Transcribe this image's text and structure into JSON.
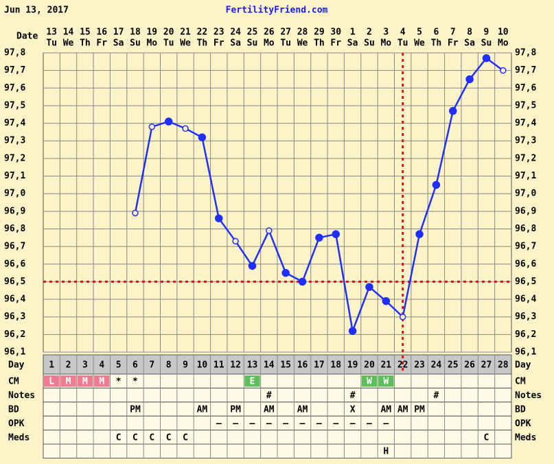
{
  "header": {
    "date": "Jun 13, 2017",
    "site": "FertilityFriend.com"
  },
  "chart_data": {
    "type": "line",
    "x_label": "Date",
    "categories": [
      "13",
      "14",
      "15",
      "16",
      "17",
      "18",
      "19",
      "20",
      "21",
      "22",
      "23",
      "24",
      "25",
      "26",
      "27",
      "28",
      "29",
      "30",
      "1",
      "2",
      "3",
      "4",
      "5",
      "6",
      "7",
      "8",
      "9",
      "10"
    ],
    "weekdays": [
      "Tu",
      "We",
      "Th",
      "Fr",
      "Sa",
      "Su",
      "Mo",
      "Tu",
      "We",
      "Th",
      "Fr",
      "Sa",
      "Su",
      "Mo",
      "Tu",
      "We",
      "Th",
      "Fr",
      "Sa",
      "Su",
      "Mo",
      "Tu",
      "We",
      "Th",
      "Fr",
      "Sa",
      "Su",
      "Mo"
    ],
    "values": [
      null,
      null,
      null,
      null,
      null,
      96.89,
      97.38,
      97.41,
      97.37,
      97.32,
      96.86,
      96.73,
      96.59,
      96.79,
      96.55,
      96.5,
      96.75,
      96.77,
      96.22,
      96.47,
      96.39,
      96.3,
      96.77,
      97.05,
      97.47,
      97.65,
      97.77,
      97.7
    ],
    "markers": [
      null,
      null,
      null,
      null,
      null,
      "open",
      "open",
      "filled",
      "open",
      "filled",
      "filled",
      "open",
      "filled",
      "open",
      "filled",
      "filled",
      "filled",
      "filled",
      "filled",
      "filled",
      "filled",
      "open",
      "filled",
      "filled",
      "filled",
      "filled",
      "filled",
      "open"
    ],
    "color": "#1f2fff",
    "ylim": [
      96.1,
      97.8
    ],
    "yticks": [
      {
        "value": 96.1,
        "label": "96,1"
      },
      {
        "value": 96.2,
        "label": "96,2"
      },
      {
        "value": 96.3,
        "label": "96,3"
      },
      {
        "value": 96.4,
        "label": "96,4"
      },
      {
        "value": 96.5,
        "label": "96,5"
      },
      {
        "value": 96.6,
        "label": "96,6"
      },
      {
        "value": 96.7,
        "label": "96,7"
      },
      {
        "value": 96.8,
        "label": "96,8"
      },
      {
        "value": 96.9,
        "label": "96,9"
      },
      {
        "value": 97.0,
        "label": "97,0"
      },
      {
        "value": 97.1,
        "label": "97,1"
      },
      {
        "value": 97.2,
        "label": "97,2"
      },
      {
        "value": 97.3,
        "label": "97,3"
      },
      {
        "value": 97.4,
        "label": "97,4"
      },
      {
        "value": 97.5,
        "label": "97,5"
      },
      {
        "value": 97.6,
        "label": "97,6"
      },
      {
        "value": 97.7,
        "label": "97,7"
      },
      {
        "value": 97.8,
        "label": "97,8"
      }
    ],
    "grid": true,
    "coverline": 96.5,
    "ovulation_day": 22
  },
  "table": {
    "rows": [
      {
        "label": "Day",
        "cells": [
          1,
          2,
          3,
          4,
          5,
          6,
          7,
          8,
          9,
          10,
          11,
          12,
          13,
          14,
          15,
          16,
          17,
          18,
          19,
          20,
          21,
          22,
          23,
          24,
          25,
          26,
          27,
          28
        ]
      },
      {
        "label": "CM",
        "cells": [
          "L",
          "M",
          "M",
          "M",
          "*",
          "*",
          null,
          null,
          null,
          null,
          null,
          null,
          "E",
          null,
          null,
          null,
          null,
          null,
          null,
          "W",
          "W",
          null,
          null,
          null,
          null,
          null,
          null,
          null
        ],
        "colors": [
          "#f07a92",
          "#f07a92",
          "#f07a92",
          "#f07a92",
          null,
          null,
          null,
          null,
          null,
          null,
          null,
          null,
          "#5cbf5c",
          null,
          null,
          null,
          null,
          null,
          null,
          "#5cbf5c",
          "#5cbf5c",
          null,
          null,
          null,
          null,
          null,
          null,
          null
        ]
      },
      {
        "label": "Notes",
        "cells": [
          null,
          null,
          null,
          null,
          null,
          null,
          null,
          null,
          null,
          null,
          null,
          null,
          null,
          "#",
          null,
          null,
          null,
          null,
          "#",
          null,
          null,
          null,
          null,
          "#",
          null,
          null,
          null,
          null
        ]
      },
      {
        "label": "BD",
        "cells": [
          null,
          null,
          null,
          null,
          null,
          "PM",
          null,
          null,
          null,
          "AM",
          null,
          "PM",
          null,
          "AM",
          null,
          "AM",
          null,
          null,
          "X",
          null,
          "AM",
          "AM",
          "PM",
          null,
          null,
          null,
          null,
          null
        ]
      },
      {
        "label": "OPK",
        "cells": [
          null,
          null,
          null,
          null,
          null,
          null,
          null,
          null,
          null,
          null,
          "–",
          "–",
          "–",
          "–",
          "–",
          "–",
          "–",
          "–",
          "–",
          "–",
          "–",
          null,
          null,
          null,
          null,
          null,
          null,
          null
        ]
      },
      {
        "label": "Meds",
        "cells": [
          null,
          null,
          null,
          null,
          "C",
          "C",
          "C",
          "C",
          "C",
          null,
          null,
          null,
          null,
          null,
          null,
          null,
          null,
          null,
          null,
          null,
          null,
          null,
          null,
          null,
          null,
          null,
          "C",
          null
        ]
      },
      {
        "cells": [
          null,
          null,
          null,
          null,
          null,
          null,
          null,
          null,
          null,
          null,
          null,
          null,
          null,
          null,
          null,
          null,
          null,
          null,
          null,
          null,
          "H",
          null,
          null,
          null,
          null,
          null,
          null,
          null
        ]
      }
    ]
  }
}
